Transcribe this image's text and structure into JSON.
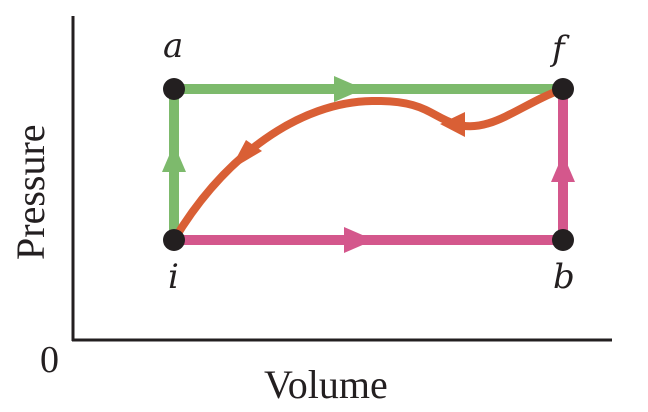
{
  "diagram": {
    "axes": {
      "x_label": "Volume",
      "y_label": "Pressure",
      "origin_label": "0"
    },
    "points": [
      {
        "id": "a",
        "label": "a"
      },
      {
        "id": "f",
        "label": "f"
      },
      {
        "id": "i",
        "label": "i"
      },
      {
        "id": "b",
        "label": "b"
      }
    ],
    "paths": [
      {
        "id": "iaf",
        "from": "i",
        "via": "a",
        "to": "f",
        "color": "#7dba6c"
      },
      {
        "id": "ibf",
        "from": "i",
        "via": "b",
        "to": "f",
        "color": "#d4578c"
      },
      {
        "id": "fi",
        "from": "f",
        "to": "i",
        "color": "#d95f35"
      }
    ],
    "colors": {
      "axis": "#231f20",
      "point": "#231f20",
      "green_path": "#7dba6c",
      "pink_path": "#d4578c",
      "orange_path": "#d95f35"
    }
  }
}
